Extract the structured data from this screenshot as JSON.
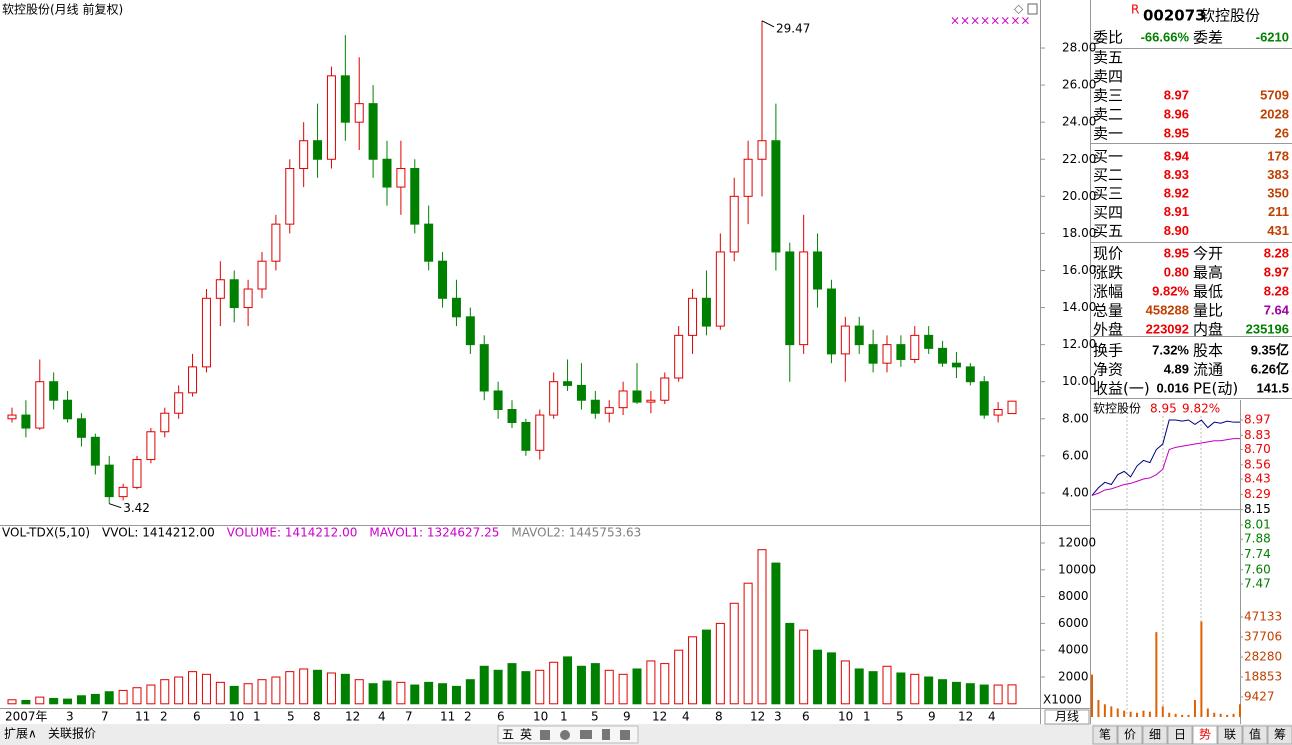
{
  "chart_data": {
    "type": "candlestick",
    "title": "软控股份(月线 前复权)",
    "flags": "××××××××",
    "period": "月线",
    "volume_unit": "X1000",
    "ylim": [
      2.27,
      29.62
    ],
    "yticks": [
      {
        "value": 4,
        "label": "4.00"
      },
      {
        "value": 6,
        "label": "6.00"
      },
      {
        "value": 8,
        "label": "8.00"
      },
      {
        "value": 10,
        "label": "10.00"
      },
      {
        "value": 12,
        "label": "12.00"
      },
      {
        "value": 14,
        "label": "14.00"
      },
      {
        "value": 16,
        "label": "16.00"
      },
      {
        "value": 18,
        "label": "18.00"
      },
      {
        "value": 20,
        "label": "20.00"
      },
      {
        "value": 22,
        "label": "22.00"
      },
      {
        "value": 24,
        "label": "24.00"
      },
      {
        "value": 26,
        "label": "26.00"
      },
      {
        "value": 28,
        "label": "28.00"
      }
    ],
    "up_color": "#e00000",
    "down_color": "#008000",
    "ohlc": [
      [
        8.0,
        8.6,
        7.8,
        8.2
      ],
      [
        8.2,
        9.0,
        7.0,
        7.5
      ],
      [
        7.5,
        11.2,
        7.4,
        10.0
      ],
      [
        10.0,
        10.5,
        8.5,
        9.0
      ],
      [
        9.0,
        9.5,
        7.8,
        8.0
      ],
      [
        8.0,
        8.3,
        6.5,
        7.0
      ],
      [
        7.0,
        7.2,
        5.0,
        5.5
      ],
      [
        5.5,
        6.0,
        3.42,
        3.8
      ],
      [
        3.8,
        4.5,
        3.6,
        4.3
      ],
      [
        4.3,
        6.0,
        4.2,
        5.8
      ],
      [
        5.8,
        7.5,
        5.6,
        7.3
      ],
      [
        7.3,
        8.6,
        7.0,
        8.3
      ],
      [
        8.3,
        9.8,
        8.0,
        9.4
      ],
      [
        9.4,
        11.5,
        9.2,
        10.8
      ],
      [
        10.8,
        15.0,
        10.5,
        14.5
      ],
      [
        14.5,
        16.5,
        13.0,
        15.5
      ],
      [
        15.5,
        16.0,
        13.2,
        14.0
      ],
      [
        14.0,
        15.5,
        13.0,
        15.0
      ],
      [
        15.0,
        17.0,
        14.5,
        16.5
      ],
      [
        16.5,
        19.0,
        16.0,
        18.5
      ],
      [
        18.5,
        22.0,
        18.0,
        21.5
      ],
      [
        21.5,
        24.0,
        20.5,
        23.0
      ],
      [
        23.0,
        25.0,
        21.0,
        22.0
      ],
      [
        22.0,
        27.0,
        21.5,
        26.5
      ],
      [
        26.5,
        28.7,
        23.0,
        24.0
      ],
      [
        24.0,
        27.5,
        22.5,
        25.0
      ],
      [
        25.0,
        26.0,
        21.0,
        22.0
      ],
      [
        22.0,
        23.0,
        19.5,
        20.5
      ],
      [
        20.5,
        23.0,
        19.0,
        21.5
      ],
      [
        21.5,
        22.0,
        18.0,
        18.5
      ],
      [
        18.5,
        19.5,
        16.0,
        16.5
      ],
      [
        16.5,
        17.0,
        14.0,
        14.5
      ],
      [
        14.5,
        15.5,
        13.0,
        13.5
      ],
      [
        13.5,
        14.0,
        11.5,
        12.0
      ],
      [
        12.0,
        12.5,
        9.0,
        9.5
      ],
      [
        9.5,
        10.0,
        8.0,
        8.5
      ],
      [
        8.5,
        9.0,
        7.5,
        7.8
      ],
      [
        7.8,
        8.0,
        6.0,
        6.3
      ],
      [
        6.3,
        8.5,
        5.8,
        8.2
      ],
      [
        8.2,
        10.5,
        8.0,
        10.0
      ],
      [
        10.0,
        11.2,
        9.5,
        9.8
      ],
      [
        9.8,
        11.0,
        8.5,
        9.0
      ],
      [
        9.0,
        9.5,
        8.0,
        8.3
      ],
      [
        8.3,
        9.0,
        7.8,
        8.6
      ],
      [
        8.6,
        10.0,
        8.2,
        9.5
      ],
      [
        9.5,
        11.0,
        8.8,
        8.9
      ],
      [
        8.9,
        9.5,
        8.3,
        9.0
      ],
      [
        9.0,
        10.5,
        8.8,
        10.2
      ],
      [
        10.2,
        13.0,
        10.0,
        12.5
      ],
      [
        12.5,
        15.0,
        11.5,
        14.5
      ],
      [
        14.5,
        16.0,
        12.5,
        13.0
      ],
      [
        13.0,
        18.0,
        12.8,
        17.0
      ],
      [
        17.0,
        21.0,
        16.5,
        20.0
      ],
      [
        20.0,
        23.0,
        18.5,
        22.0
      ],
      [
        22.0,
        29.47,
        20.0,
        23.0
      ],
      [
        23.0,
        25.0,
        16.0,
        17.0
      ],
      [
        17.0,
        17.5,
        10.0,
        12.0
      ],
      [
        12.0,
        19.0,
        11.5,
        17.0
      ],
      [
        17.0,
        18.0,
        14.0,
        15.0
      ],
      [
        15.0,
        15.5,
        11.0,
        11.5
      ],
      [
        11.5,
        13.5,
        10.0,
        13.0
      ],
      [
        13.0,
        13.5,
        11.5,
        12.0
      ],
      [
        12.0,
        12.8,
        10.5,
        11.0
      ],
      [
        11.0,
        12.5,
        10.5,
        12.0
      ],
      [
        12.0,
        12.5,
        10.8,
        11.2
      ],
      [
        11.2,
        13.0,
        11.0,
        12.5
      ],
      [
        12.5,
        13.0,
        11.5,
        11.8
      ],
      [
        11.8,
        12.2,
        10.8,
        11.0
      ],
      [
        11.0,
        11.6,
        10.2,
        10.8
      ],
      [
        10.8,
        11.0,
        9.8,
        10.0
      ],
      [
        10.0,
        10.3,
        8.0,
        8.2
      ],
      [
        8.2,
        8.9,
        7.8,
        8.5
      ],
      [
        8.28,
        8.97,
        8.28,
        8.95
      ]
    ],
    "volume": [
      300,
      250,
      500,
      400,
      350,
      600,
      700,
      900,
      1000,
      1200,
      1400,
      1800,
      2000,
      2400,
      2200,
      1600,
      1300,
      1500,
      1800,
      2000,
      2400,
      2600,
      2500,
      2300,
      2200,
      1800,
      1500,
      1700,
      1600,
      1400,
      1600,
      1500,
      1300,
      1800,
      2800,
      2500,
      3000,
      2400,
      2500,
      3100,
      3500,
      2800,
      3000,
      2500,
      2200,
      2600,
      3200,
      3000,
      4000,
      5000,
      5500,
      6000,
      7500,
      9000,
      11500,
      10500,
      6000,
      5500,
      4000,
      3800,
      3200,
      2600,
      2400,
      2800,
      2300,
      2200,
      2000,
      1800,
      1600,
      1500,
      1400,
      1400,
      1414
    ],
    "volume_ylim": [
      -313,
      13194
    ],
    "volume_yticks": [
      2000,
      4000,
      6000,
      8000,
      10000,
      12000
    ],
    "volume_legend": [
      {
        "text": "VOL-TDX(5,10)",
        "color": "#000000"
      },
      {
        "text": "VVOL: 1414212.00",
        "color": "#000000"
      },
      {
        "text": "VOLUME: 1414212.00",
        "color": "#cc00cc"
      },
      {
        "text": "MAVOL1: 1324627.25",
        "color": "#cc00cc"
      },
      {
        "text": "MAVOL2: 1445753.63",
        "color": "#808080"
      }
    ],
    "x_labels": [
      "2007年",
      "3",
      "7",
      "11",
      "2",
      "6",
      "10",
      "1",
      "5",
      "8",
      "12",
      "4",
      "7",
      "11",
      "2",
      "6",
      "10",
      "1",
      "5",
      "9",
      "12",
      "4",
      "8",
      "12",
      "3",
      "6",
      "10",
      "1",
      "5",
      "9",
      "12",
      "4"
    ]
  },
  "quote": {
    "flag": "R",
    "code": "002073",
    "name": "软控股份",
    "ratio": [
      "委比",
      "-66.66%",
      "委差",
      "-6210"
    ],
    "sell": [
      {
        "label": "卖五"
      },
      {
        "label": "卖四"
      },
      {
        "label": "卖三",
        "price": "8.97",
        "vol": "5709"
      },
      {
        "label": "卖二",
        "price": "8.96",
        "vol": "2028"
      },
      {
        "label": "卖一",
        "price": "8.95",
        "vol": "26"
      }
    ],
    "buy": [
      {
        "label": "买一",
        "price": "8.94",
        "vol": "178"
      },
      {
        "label": "买二",
        "price": "8.93",
        "vol": "383"
      },
      {
        "label": "买三",
        "price": "8.92",
        "vol": "350"
      },
      {
        "label": "买四",
        "price": "8.91",
        "vol": "211"
      },
      {
        "label": "买五",
        "price": "8.90",
        "vol": "431"
      }
    ],
    "stats": [
      [
        "现价",
        "8.95",
        "今开",
        "8.28"
      ],
      [
        "涨跌",
        "0.80",
        "最高",
        "8.97"
      ],
      [
        "涨幅",
        "9.82%",
        "最低",
        "8.28"
      ],
      [
        "总量",
        "458288",
        "量比",
        "7.64"
      ],
      [
        "外盘",
        "223092",
        "内盘",
        "235196"
      ],
      [
        "换手",
        "7.32%",
        "股本",
        "9.35亿"
      ],
      [
        "净资",
        "4.89",
        "流通",
        "6.26亿"
      ],
      [
        "收益(一)",
        "0.016",
        "PE(动)",
        "141.5"
      ]
    ]
  },
  "intraday": {
    "type": "line",
    "name": "软控股份",
    "price_text": "8.95",
    "change_text": "9.82%",
    "ylim": [
      7.47,
      8.97
    ],
    "yticks": [
      8.97,
      8.83,
      {
        "value": 8.7,
        "label": "8.70"
      },
      8.56,
      8.43,
      8.29,
      8.15,
      8.01,
      7.88,
      7.74,
      {
        "value": 7.6,
        "label": "7.60"
      },
      7.47
    ],
    "price": [
      8.28,
      8.35,
      8.4,
      8.38,
      8.47,
      8.5,
      8.45,
      8.55,
      8.6,
      8.58,
      8.7,
      8.75,
      8.97,
      8.97,
      8.96,
      8.97,
      8.93,
      8.97,
      8.9,
      8.95,
      8.94,
      8.96,
      8.95,
      8.95
    ],
    "avg": [
      8.28,
      8.3,
      8.33,
      8.34,
      8.36,
      8.38,
      8.39,
      8.41,
      8.43,
      8.44,
      8.47,
      8.52,
      8.7,
      8.72,
      8.73,
      8.74,
      8.75,
      8.76,
      8.77,
      8.78,
      8.78,
      8.79,
      8.8,
      8.8
    ],
    "volume_ylim": [
      0,
      47133
    ],
    "volume_yticks": [
      47133,
      37706,
      28280,
      18853,
      9427
    ],
    "volume": [
      20000,
      8000,
      6000,
      5000,
      4000,
      3000,
      2500,
      2000,
      3000,
      2500,
      40000,
      5000,
      2000,
      1500,
      1000,
      1000,
      8000,
      45000,
      4000,
      2000,
      1500,
      1000,
      1500,
      6000
    ]
  },
  "footer": {
    "left": [
      "扩展∧",
      "关联报价"
    ],
    "tools": [
      "五",
      "英"
    ],
    "tabs": [
      "笔",
      "价",
      "细",
      "日",
      "势",
      "联",
      "值",
      "筹"
    ],
    "active_tab": 4
  }
}
